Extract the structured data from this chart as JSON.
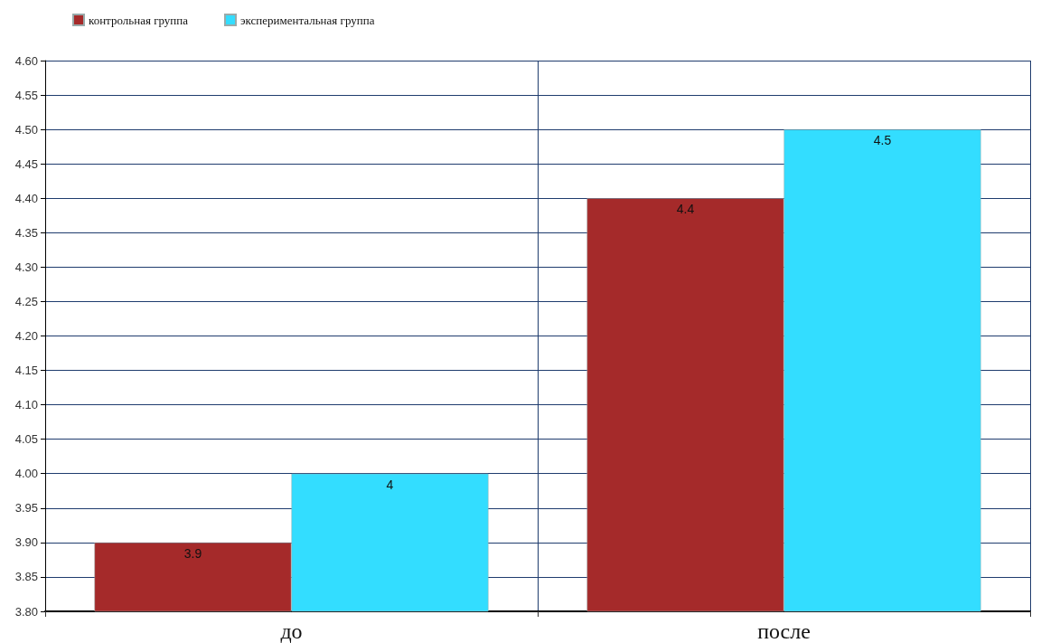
{
  "chart_data": {
    "type": "bar",
    "categories": [
      "до",
      "после"
    ],
    "series": [
      {
        "name": "контрольная группа",
        "color": "#a52a2a",
        "values": [
          3.9,
          4.4
        ]
      },
      {
        "name": "экспериментальная группа",
        "color": "#33ddff",
        "values": [
          4.0,
          4.5
        ]
      }
    ],
    "ylim": [
      3.8,
      4.6
    ],
    "yticks": [
      {
        "value": 3.8,
        "label": "3.80"
      },
      {
        "value": 3.85,
        "label": "3.85"
      },
      {
        "value": 3.9,
        "label": "3.90"
      },
      {
        "value": 3.95,
        "label": "3.95"
      },
      {
        "value": 4.0,
        "label": "4.00"
      },
      {
        "value": 4.05,
        "label": "4.05"
      },
      {
        "value": 4.1,
        "label": "4.10"
      },
      {
        "value": 4.15,
        "label": "4.15"
      },
      {
        "value": 4.2,
        "label": "4.20"
      },
      {
        "value": 4.25,
        "label": "4.25"
      },
      {
        "value": 4.3,
        "label": "4.30"
      },
      {
        "value": 4.35,
        "label": "4.35"
      },
      {
        "value": 4.4,
        "label": "4.40"
      },
      {
        "value": 4.45,
        "label": "4.45"
      },
      {
        "value": 4.5,
        "label": "4.50"
      },
      {
        "value": 4.55,
        "label": "4.55"
      },
      {
        "value": 4.6,
        "label": "4.60"
      }
    ],
    "grid": true,
    "legend": "top left",
    "data_labels": true
  }
}
